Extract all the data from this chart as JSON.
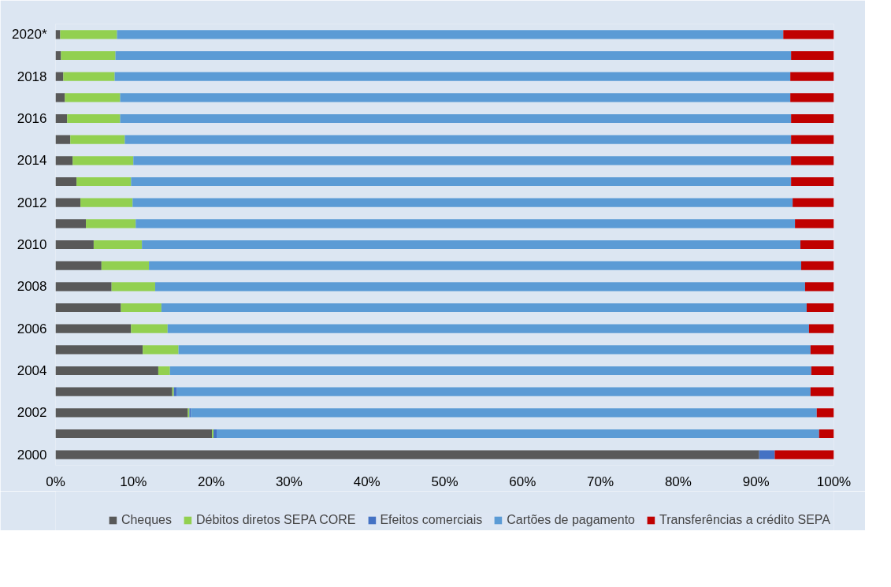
{
  "chart_data": {
    "type": "bar",
    "orientation": "horizontal",
    "stacked": true,
    "categories": [
      "2020*",
      null,
      "2018",
      null,
      "2016",
      null,
      "2014",
      null,
      "2012",
      null,
      "2010",
      null,
      "2008",
      null,
      "2006",
      null,
      "2004",
      null,
      "2002",
      null,
      "2000"
    ],
    "series": [
      {
        "name": "Cheques",
        "color": "#595959",
        "values": [
          0.6,
          0.7,
          1.0,
          1.2,
          1.5,
          1.9,
          2.2,
          2.7,
          3.2,
          3.9,
          4.9,
          5.9,
          7.2,
          8.4,
          9.7,
          11.2,
          13.2,
          15.0,
          17.0,
          20.1,
          90.4
        ]
      },
      {
        "name": "Débitos diretos SEPA CORE",
        "color": "#92d050",
        "values": [
          7.3,
          7.0,
          6.6,
          7.1,
          6.8,
          7.0,
          7.8,
          7.0,
          6.7,
          6.4,
          6.2,
          6.1,
          5.6,
          5.2,
          4.7,
          4.6,
          1.5,
          0.2,
          0.2,
          0.2,
          0
        ]
      },
      {
        "name": "Efeitos comerciais",
        "color": "#4472c4",
        "values": [
          0,
          0,
          0,
          0,
          0,
          0,
          0,
          0,
          0,
          0,
          0,
          0,
          0,
          0,
          0,
          0,
          0,
          0.4,
          0.2,
          0.4,
          2.0
        ]
      },
      {
        "name": "Cartões de pagamento",
        "color": "#5b9bd5",
        "values": [
          85.6,
          86.8,
          86.8,
          86.1,
          86.2,
          85.6,
          84.5,
          84.8,
          84.8,
          84.7,
          84.6,
          83.8,
          83.5,
          82.9,
          82.4,
          81.2,
          82.4,
          81.4,
          80.4,
          77.4,
          0
        ]
      },
      {
        "name": "Transferências a crédito SEPA",
        "color": "#c00000",
        "values": [
          6.5,
          5.5,
          5.6,
          5.6,
          5.5,
          5.5,
          5.5,
          5.5,
          5.3,
          5.0,
          4.3,
          4.2,
          3.7,
          3.5,
          3.2,
          3.0,
          2.9,
          3.0,
          2.2,
          1.9,
          7.6
        ]
      }
    ],
    "xlim": [
      0,
      100
    ],
    "xticks": [
      {
        "value": 0,
        "label": "0%"
      },
      {
        "value": 10,
        "label": "10%"
      },
      {
        "value": 20,
        "label": "20%"
      },
      {
        "value": 30,
        "label": "30%"
      },
      {
        "value": 40,
        "label": "40%"
      },
      {
        "value": 50,
        "label": "50%"
      },
      {
        "value": 60,
        "label": "60%"
      },
      {
        "value": 70,
        "label": "70%"
      },
      {
        "value": 80,
        "label": "80%"
      },
      {
        "value": 90,
        "label": "90%"
      },
      {
        "value": 100,
        "label": "100%"
      }
    ],
    "grid": false,
    "legend": "bottom"
  }
}
